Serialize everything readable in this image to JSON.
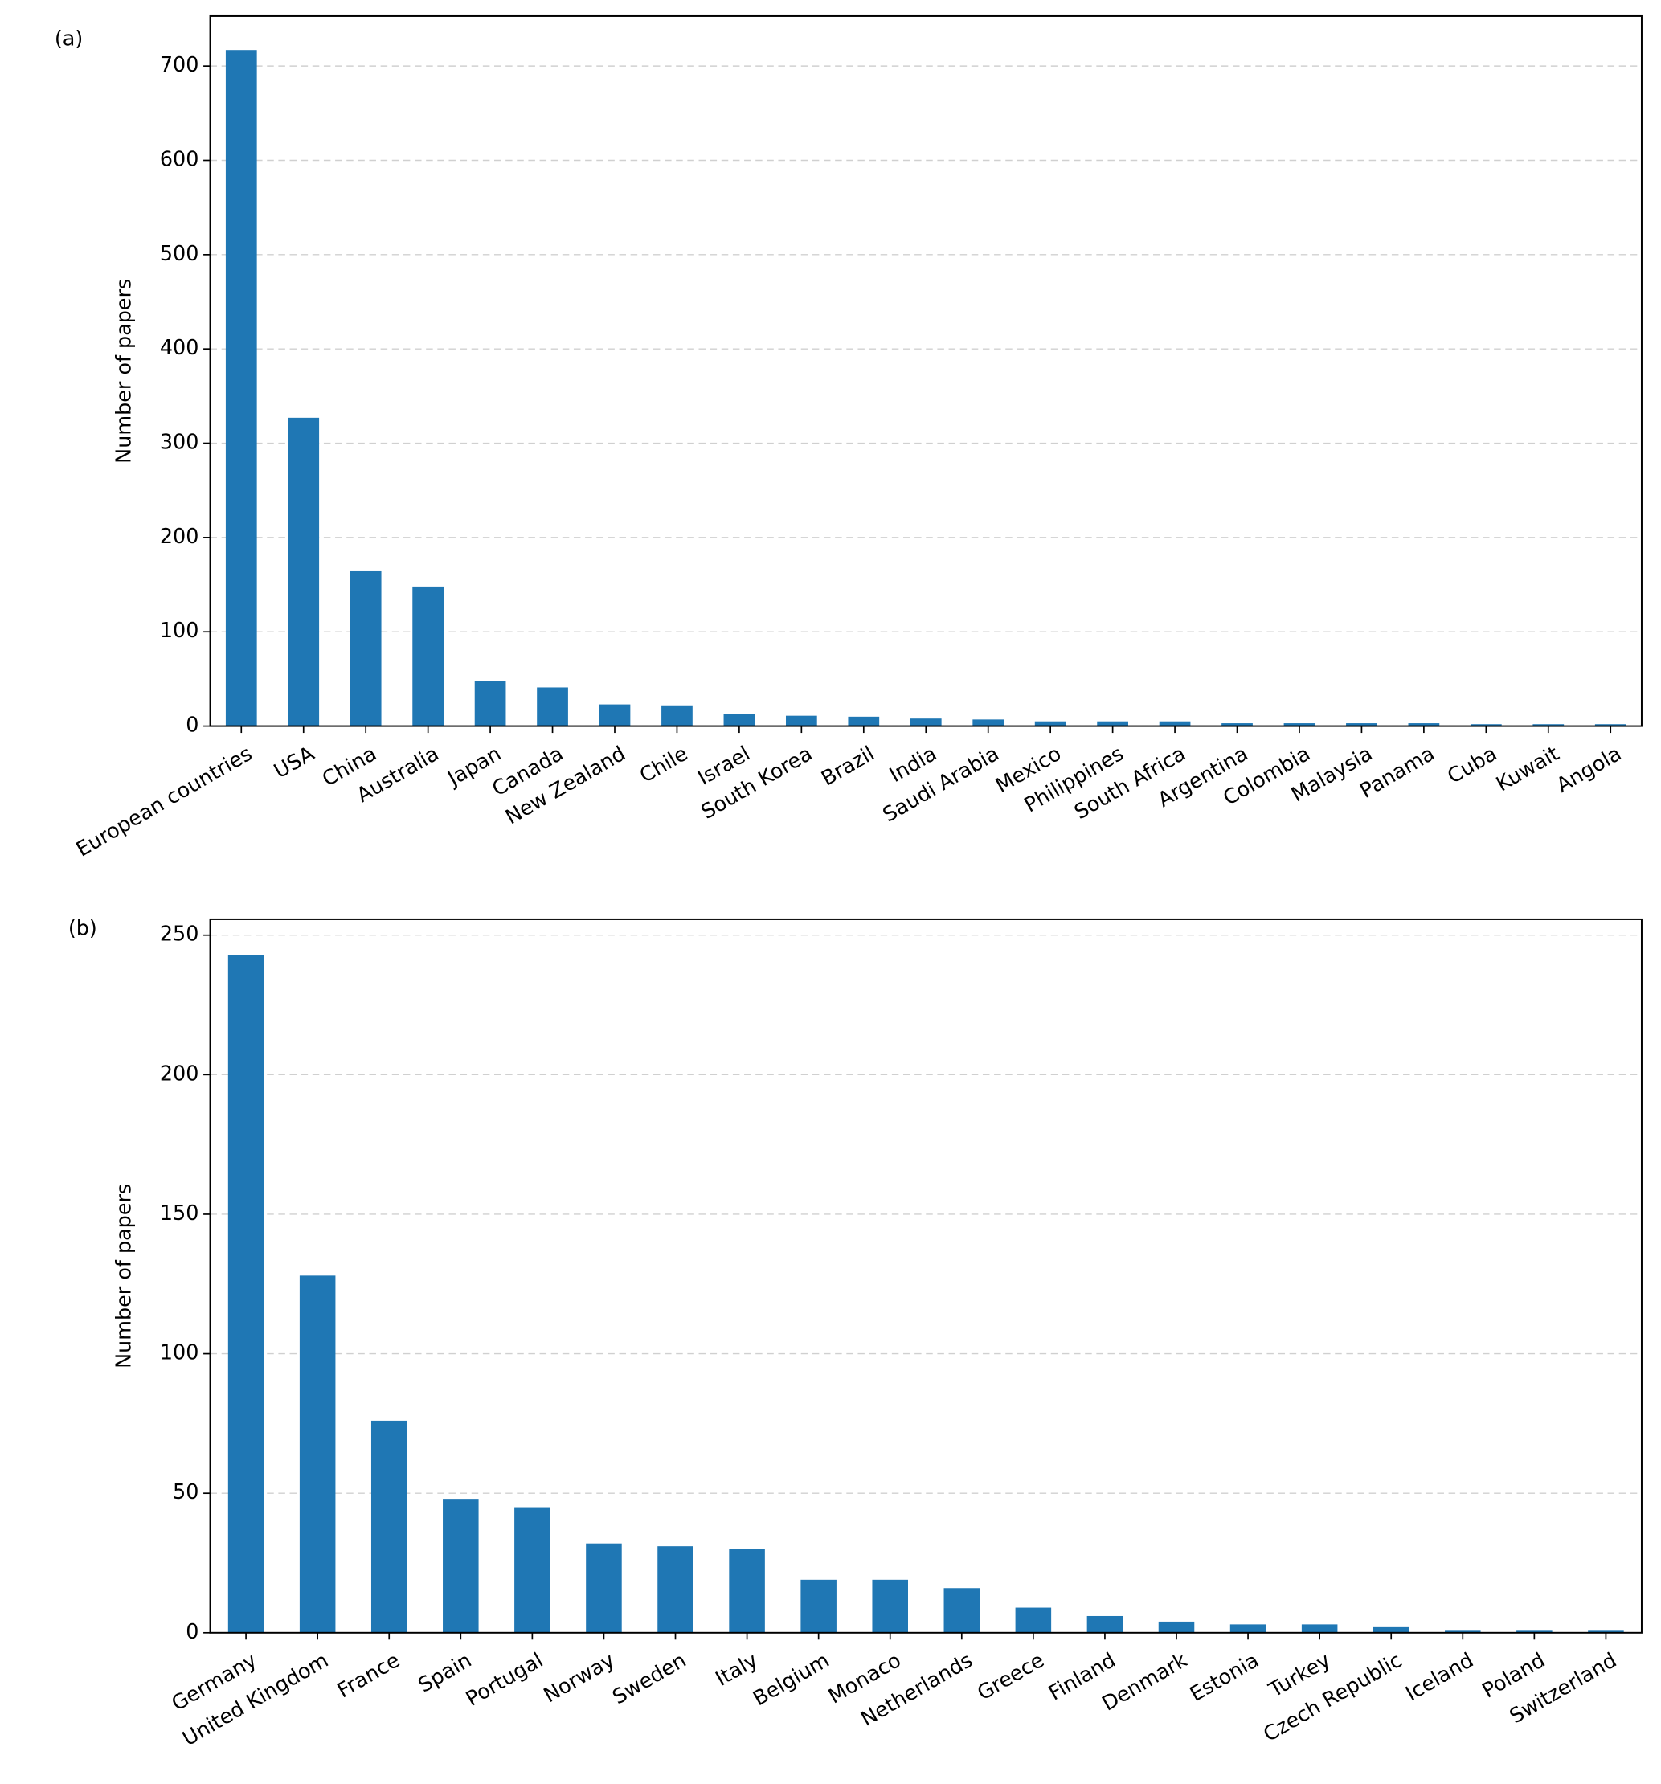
{
  "chart_data": [
    {
      "type": "bar",
      "label": "(a)",
      "y_label": "Number of papers",
      "categories": [
        "European countries",
        "USA",
        "China",
        "Australia",
        "Japan",
        "Canada",
        "New Zealand",
        "Chile",
        "Israel",
        "South Korea",
        "Brazil",
        "India",
        "Saudi Arabia",
        "Mexico",
        "Philippines",
        "South Africa",
        "Argentina",
        "Colombia",
        "Malaysia",
        "Panama",
        "Cuba",
        "Kuwait",
        "Angola"
      ],
      "values": [
        717,
        327,
        165,
        148,
        48,
        41,
        23,
        22,
        13,
        11,
        10,
        8,
        7,
        5,
        5,
        5,
        3,
        3,
        3,
        3,
        2,
        2,
        2
      ],
      "color": "#1f77b4",
      "ylim": [
        0,
        753
      ],
      "yticks": [
        0,
        100,
        200,
        300,
        400,
        500,
        600,
        700
      ],
      "grid": true
    },
    {
      "type": "bar",
      "label": "(b)",
      "y_label": "Number of papers",
      "categories": [
        "Germany",
        "United Kingdom",
        "France",
        "Spain",
        "Portugal",
        "Norway",
        "Sweden",
        "Italy",
        "Belgium",
        "Monaco",
        "Netherlands",
        "Greece",
        "Finland",
        "Denmark",
        "Estonia",
        "Turkey",
        "Czech Republic",
        "Iceland",
        "Poland",
        "Switzerland"
      ],
      "values": [
        243,
        128,
        76,
        48,
        45,
        32,
        31,
        30,
        19,
        19,
        16,
        9,
        6,
        4,
        3,
        3,
        2,
        1,
        1,
        1
      ],
      "color": "#1f77b4",
      "ylim": [
        0,
        255.7
      ],
      "yticks": [
        0,
        50,
        100,
        150,
        200,
        250
      ],
      "grid": true
    }
  ]
}
